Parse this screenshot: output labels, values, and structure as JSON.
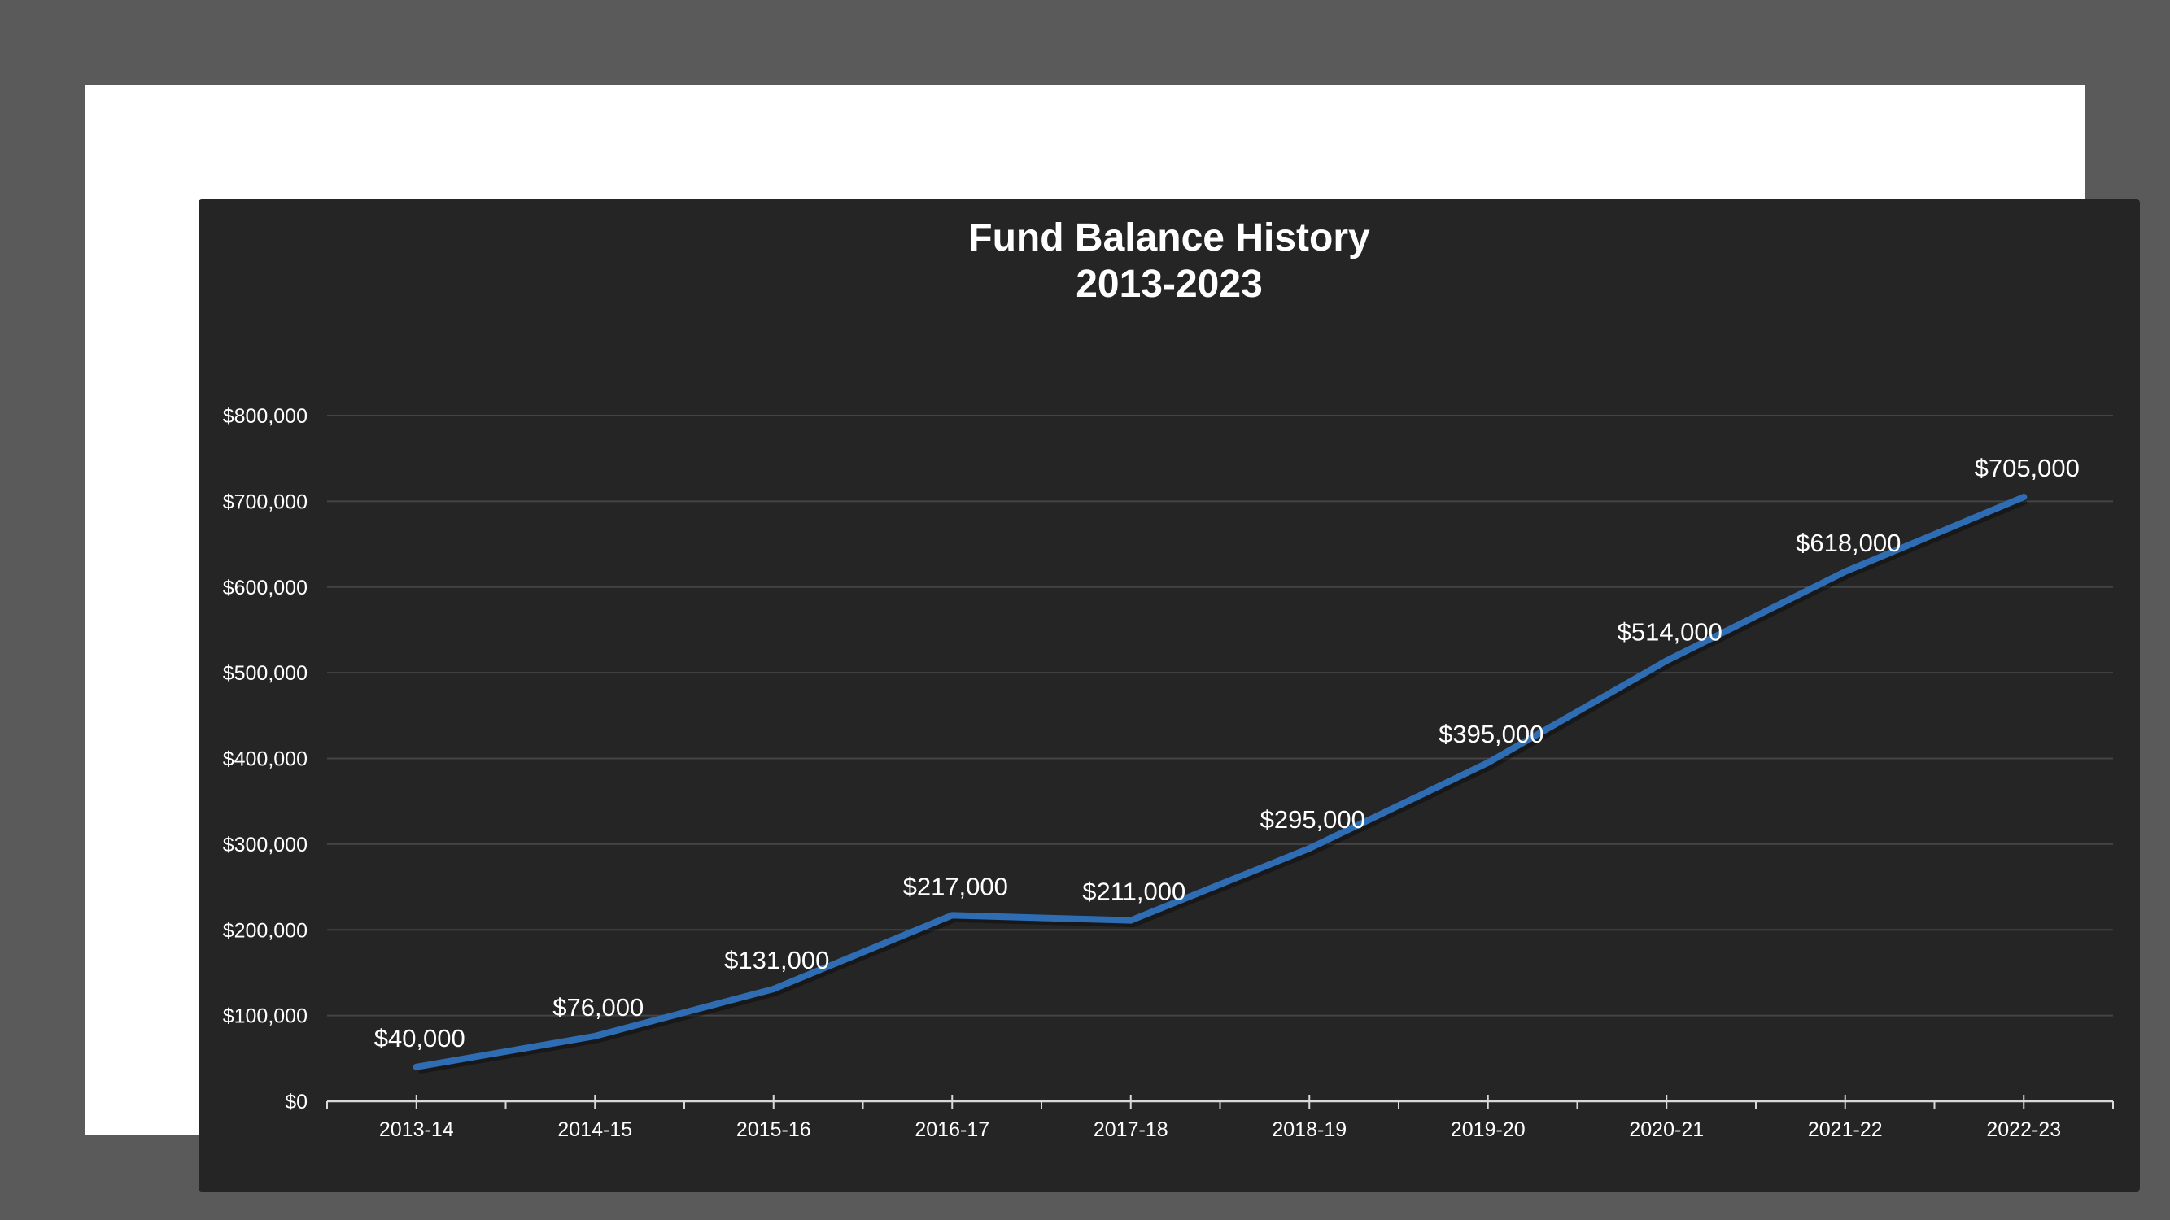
{
  "colors": {
    "outer_background": "#5a5a5a",
    "frame": "#ffffff",
    "panel": "#252525",
    "gridline": "#444444",
    "axis": "#d9d9d9",
    "text": "#ffffff",
    "series_line": "#2e6db4"
  },
  "chart_data": {
    "type": "line",
    "title_lines": [
      "Fund Balance History",
      "2013-2023"
    ],
    "categories": [
      "2013-14",
      "2014-15",
      "2015-16",
      "2016-17",
      "2017-18",
      "2018-19",
      "2019-20",
      "2020-21",
      "2021-22",
      "2022-23"
    ],
    "series": [
      {
        "values": [
          40000,
          76000,
          131000,
          217000,
          211000,
          295000,
          395000,
          514000,
          618000,
          705000
        ]
      }
    ],
    "data_labels": [
      "$40,000",
      "$76,000",
      "$131,000",
      "$217,000",
      "$211,000",
      "$295,000",
      "$395,000",
      "$514,000",
      "$618,000",
      "$705,000"
    ],
    "ylim": [
      0,
      800000
    ],
    "ytick_values": [
      0,
      100000,
      200000,
      300000,
      400000,
      500000,
      600000,
      700000,
      800000
    ],
    "ytick_labels": [
      "$0",
      "$100,000",
      "$200,000",
      "$300,000",
      "$400,000",
      "$500,000",
      "$600,000",
      "$700,000",
      "$800,000"
    ],
    "grid": true,
    "legend": "none"
  }
}
